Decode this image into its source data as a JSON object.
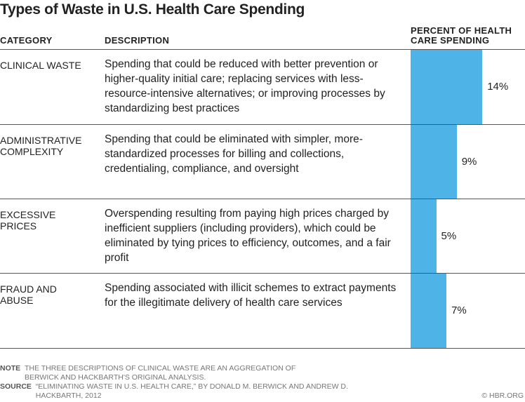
{
  "chart_data": {
    "type": "bar",
    "orientation": "horizontal",
    "title": "Types of Waste in U.S. Health Care Spending",
    "columns": [
      "CATEGORY",
      "DESCRIPTION",
      "PERCENT OF HEALTH CARE SPENDING"
    ],
    "categories": [
      "CLINICAL WASTE",
      "ADMINISTRATIVE COMPLEXITY",
      "EXCESSIVE PRICES",
      "FRAUD AND ABUSE"
    ],
    "descriptions": [
      "Spending that could be reduced with better prevention or higher-quality initial care; replacing services with less-resource-intensive alternatives; or improving processes by standardizing best practices",
      "Spending that could be eliminated with simpler, more-standardized processes for billing and collections, credentialing, compliance, and oversight",
      "Overspending resulting from paying high prices charged by inefficient suppliers (including providers), which could be eliminated by tying prices to efficiency, outcomes, and a fair profit",
      "Spending associated with illicit schemes to extract payments for the illegitimate delivery of health care services"
    ],
    "values": [
      14,
      9,
      5,
      7
    ],
    "labels": [
      "14%",
      "9%",
      "5%",
      "7%"
    ],
    "unit": "%",
    "bar_color": "#4eb3e6",
    "grid": false
  },
  "note_label": "NOTE",
  "note": "The three descriptions of clinical waste are an aggregation of Berwick and Hackbarth's original analysis.",
  "source_label": "SOURCE",
  "source": "“Eliminating Waste in U.S. Health Care,” by Donald M. Berwick and Andrew D. Hackbarth, 2012",
  "copyright": "© HBR.ORG"
}
